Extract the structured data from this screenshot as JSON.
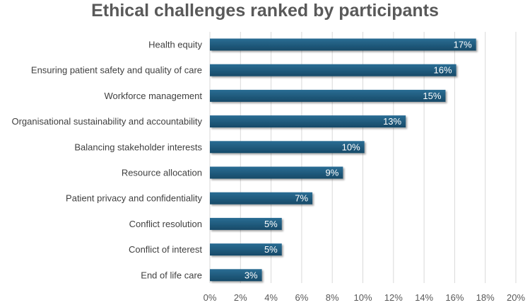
{
  "chart_data": {
    "type": "bar",
    "orientation": "horizontal",
    "title": "Ethical challenges ranked by participants",
    "categories": [
      "Health equity",
      "Ensuring patient safety and quality of care",
      "Workforce management",
      "Organisational sustainability and accountability",
      "Balancing stakeholder interests",
      "Resource allocation",
      "Patient privacy and confidentiality",
      "Conflict resolution",
      "Conflict of interest",
      "End of life care"
    ],
    "values": [
      17.4,
      16.1,
      15.4,
      12.8,
      10.1,
      8.7,
      6.7,
      4.7,
      4.7,
      3.4
    ],
    "data_labels": [
      "17%",
      "16%",
      "15%",
      "13%",
      "10%",
      "9%",
      "7%",
      "5%",
      "5%",
      "3%"
    ],
    "xlim": [
      0,
      20
    ],
    "x_ticks": [
      0,
      2,
      4,
      6,
      8,
      10,
      12,
      14,
      16,
      18,
      20
    ],
    "x_tick_labels": [
      "0%",
      "2%",
      "4%",
      "6%",
      "8%",
      "10%",
      "12%",
      "14%",
      "16%",
      "18%",
      "20%"
    ],
    "xlabel": "",
    "ylabel": "",
    "grid": "vertical",
    "legend": "none",
    "colors": {
      "bar_top": "#2a6d94",
      "bar_bottom": "#174a68",
      "grid": "#d9d9d9",
      "axis_text": "#595959",
      "title": "#595959",
      "data_label": "#ffffff"
    }
  }
}
